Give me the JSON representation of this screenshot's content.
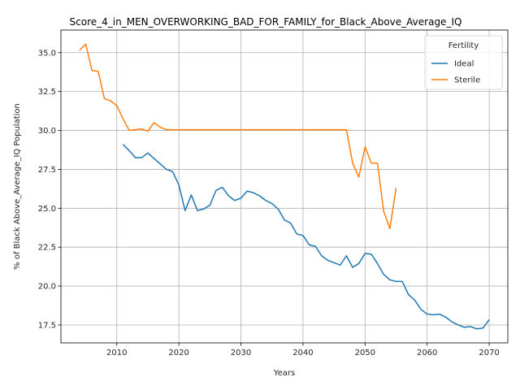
{
  "chart_data": {
    "type": "line",
    "title": "Score_4_in_MEN_OVERWORKING_BAD_FOR_FAMILY_for_Black_Above_Average_IQ",
    "xlabel": "Years",
    "ylabel": "% of Black Above_Average_IQ Population",
    "xlim": [
      2001,
      2073
    ],
    "ylim": [
      16.35,
      36.45
    ],
    "xticks": [
      "2010",
      "2020",
      "2030",
      "2040",
      "2050",
      "2060",
      "2070"
    ],
    "yticks": [
      "17.5",
      "20.0",
      "22.5",
      "25.0",
      "27.5",
      "30.0",
      "32.5",
      "35.0"
    ],
    "grid": true,
    "legend": {
      "title": "Fertility",
      "placement": "top-right"
    },
    "series": [
      {
        "name": "Ideal",
        "color": "#1f77b4",
        "x": [
          2011,
          2012,
          2013,
          2014,
          2015,
          2016,
          2017,
          2018,
          2019,
          2020,
          2021,
          2022,
          2023,
          2024,
          2025,
          2026,
          2027,
          2028,
          2029,
          2030,
          2031,
          2032,
          2033,
          2034,
          2035,
          2036,
          2037,
          2038,
          2039,
          2040,
          2041,
          2042,
          2043,
          2044,
          2045,
          2046,
          2047,
          2048,
          2049,
          2050,
          2051,
          2052,
          2053,
          2054,
          2055,
          2056,
          2057,
          2058,
          2059,
          2060,
          2061,
          2062,
          2063,
          2064,
          2065,
          2066,
          2067,
          2068,
          2069,
          2070
        ],
        "y": [
          29.1,
          28.7,
          28.25,
          28.25,
          28.55,
          28.2,
          27.85,
          27.5,
          27.35,
          26.5,
          24.85,
          25.85,
          24.85,
          24.95,
          25.2,
          26.15,
          26.35,
          25.8,
          25.5,
          25.65,
          26.1,
          26.0,
          25.8,
          25.5,
          25.3,
          24.95,
          24.25,
          24.05,
          23.35,
          23.25,
          22.65,
          22.55,
          21.95,
          21.65,
          21.5,
          21.35,
          21.95,
          21.2,
          21.45,
          22.1,
          22.05,
          21.45,
          20.75,
          20.4,
          20.3,
          20.3,
          19.45,
          19.1,
          18.5,
          18.2,
          18.15,
          18.2,
          18.0,
          17.7,
          17.5,
          17.35,
          17.4,
          17.25,
          17.3,
          17.85
        ]
      },
      {
        "name": "Sterile",
        "color": "#ff7f0e",
        "x": [
          2004,
          2005,
          2006,
          2007,
          2008,
          2009,
          2010,
          2011,
          2012,
          2013,
          2014,
          2015,
          2016,
          2017,
          2018,
          2019,
          2020,
          2021,
          2022,
          2023,
          2024,
          2025,
          2026,
          2027,
          2028,
          2029,
          2030,
          2031,
          2032,
          2033,
          2034,
          2035,
          2036,
          2037,
          2038,
          2039,
          2040,
          2041,
          2042,
          2043,
          2044,
          2045,
          2046,
          2047,
          2048,
          2049,
          2050,
          2051,
          2052,
          2053,
          2054,
          2055
        ],
        "y": [
          35.15,
          35.55,
          33.85,
          33.8,
          32.05,
          31.9,
          31.6,
          30.75,
          30.0,
          30.05,
          30.1,
          29.95,
          30.5,
          30.2,
          30.05,
          30.05,
          30.05,
          30.05,
          30.05,
          30.05,
          30.05,
          30.05,
          30.05,
          30.05,
          30.05,
          30.05,
          30.05,
          30.05,
          30.05,
          30.05,
          30.05,
          30.05,
          30.05,
          30.05,
          30.05,
          30.05,
          30.05,
          30.05,
          30.05,
          30.05,
          30.05,
          30.05,
          30.05,
          30.05,
          27.9,
          27.0,
          28.95,
          27.9,
          27.9,
          24.8,
          23.7,
          26.3
        ]
      }
    ]
  }
}
